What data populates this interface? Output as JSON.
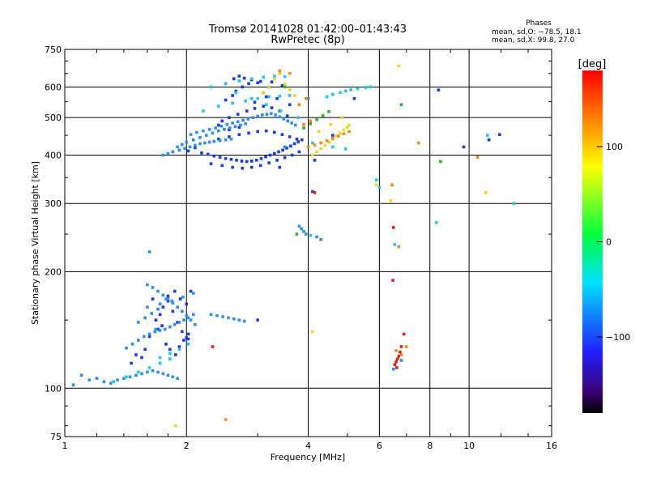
{
  "chart_data": {
    "type": "scatter",
    "title": "Tromsø 20141028 01:42:00–01:43:43",
    "subtitle": "RwPretec (8p)",
    "xlabel": "Frequency [MHz]",
    "ylabel": "Stationary phase Virtual Height [km]",
    "x_scale": "log",
    "y_scale": "log",
    "xlim": [
      1,
      16
    ],
    "ylim": [
      75,
      750
    ],
    "x_ticks": [
      1,
      2,
      4,
      6,
      8,
      10,
      16
    ],
    "y_ticks": [
      75,
      100,
      200,
      300,
      400,
      500,
      600,
      750
    ],
    "grid": true,
    "phases_info": {
      "heading": "Phases",
      "line1": "mean, sd,O: −78.5, 18.1",
      "line2": "mean, sd,X:  99.8, 27.0"
    },
    "colorbar": {
      "label": "[deg]",
      "range": [
        -180,
        180
      ],
      "ticks": [
        100,
        0,
        -100
      ],
      "colormap": "rainbow"
    },
    "colors": {
      "blue": "#1a3ddb",
      "sky": "#2e8fe8",
      "cyan": "#22c7e8",
      "yellow": "#e8d628",
      "orange": "#f28a1e",
      "red": "#e02020",
      "green": "#30b040"
    },
    "series": [
      {
        "color": "blue",
        "x": [
          2.02,
          2.1,
          2.18,
          2.26,
          2.34,
          2.42,
          2.5,
          2.58,
          2.66,
          2.74,
          2.82,
          2.9,
          2.98,
          3.06,
          3.14,
          3.22,
          3.3,
          3.38,
          3.46,
          3.54,
          3.62,
          3.7,
          3.78,
          3.86,
          2.3,
          2.45,
          2.6,
          2.75,
          2.9,
          3.05,
          3.2,
          3.35,
          3.5,
          3.65,
          3.8,
          2.4,
          2.55,
          2.7,
          2.85,
          3.0,
          3.15,
          3.3,
          3.45,
          3.6,
          3.75,
          2.45,
          2.55,
          2.68,
          2.82,
          2.95,
          3.1,
          3.25,
          3.4,
          3.55,
          2.5,
          2.6,
          2.65,
          2.75,
          2.85,
          3.05,
          3.25,
          3.45,
          2.62,
          2.7,
          2.78,
          2.9,
          3.0,
          3.2,
          3.1,
          3.35,
          3.6,
          2.95,
          3.15,
          2.55,
          2.7,
          2.4,
          1.68,
          1.72,
          1.75,
          1.8,
          1.85,
          1.9,
          1.95,
          2.0,
          1.78,
          1.82,
          1.88,
          1.92,
          1.97,
          2.02,
          1.7,
          1.62,
          1.58,
          1.55,
          1.5,
          1.46,
          1.8,
          1.87,
          1.93,
          2.0,
          2.05,
          1.65,
          1.74,
          2.02,
          4.1,
          4.6,
          5.2,
          8.4,
          9.7,
          11.2,
          11.9,
          4.15,
          3.4,
          3.0
        ],
        "y": [
          410,
          418,
          405,
          402,
          398,
          395,
          392,
          390,
          388,
          386,
          385,
          386,
          388,
          392,
          396,
          400,
          404,
          408,
          412,
          417,
          422,
          428,
          433,
          438,
          380,
          376,
          372,
          370,
          372,
          376,
          382,
          388,
          394,
          400,
          408,
          440,
          446,
          452,
          456,
          460,
          462,
          458,
          452,
          446,
          440,
          490,
          500,
          510,
          520,
          528,
          535,
          530,
          520,
          505,
          555,
          570,
          585,
          600,
          612,
          620,
          618,
          605,
          630,
          640,
          632,
          626,
          615,
          600,
          580,
          560,
          540,
          548,
          566,
          465,
          472,
          478,
          150,
          155,
          162,
          168,
          158,
          148,
          140,
          135,
          130,
          126,
          122,
          128,
          133,
          138,
          142,
          136,
          126,
          120,
          122,
          116,
          173,
          178,
          170,
          165,
          178,
          170,
          145,
          134,
          322,
          450,
          560,
          589,
          420,
          438,
          452,
          388,
          372,
          150
        ],
        "size": 1
      },
      {
        "color": "sky",
        "x": [
          2.05,
          2.12,
          2.2,
          2.28,
          2.36,
          2.44,
          2.52,
          2.6,
          2.68,
          2.76,
          2.84,
          2.92,
          3.0,
          3.08,
          3.16,
          3.24,
          3.32,
          3.4,
          3.48,
          3.56,
          3.64,
          3.72,
          1.9,
          1.95,
          2.0,
          2.08,
          2.16,
          2.24,
          2.32,
          2.4,
          2.48,
          2.56,
          2.64,
          2.72,
          2.8,
          1.75,
          1.8,
          1.85,
          1.92,
          1.98,
          2.04,
          2.1,
          2.16,
          2.22,
          2.28,
          2.34,
          2.42,
          2.5,
          2.58,
          1.6,
          1.65,
          1.7,
          1.75,
          1.8,
          1.85,
          1.9,
          1.95,
          2.0,
          2.05,
          2.1,
          1.42,
          1.47,
          1.52,
          1.57,
          1.62,
          1.67,
          1.72,
          1.77,
          1.82,
          1.87,
          1.92,
          1.97,
          2.02,
          2.08,
          1.15,
          1.2,
          1.25,
          1.3,
          1.35,
          1.4,
          1.45,
          1.5,
          1.55,
          1.6,
          1.65,
          1.7,
          1.75,
          1.8,
          1.85,
          1.9,
          2.3,
          2.38,
          2.46,
          2.54,
          2.62,
          2.7,
          2.78,
          1.6,
          1.72,
          1.84,
          1.96,
          2.08,
          1.52,
          1.58,
          1.64,
          1.7,
          3.8,
          3.85,
          3.9,
          3.95,
          4.2,
          4.3,
          6.5,
          6.8,
          1.05,
          1.1,
          1.62,
          1.78,
          1.68,
          3.5,
          4.0
        ],
        "y": [
          452,
          458,
          462,
          466,
          470,
          475,
          480,
          484,
          488,
          492,
          496,
          500,
          504,
          508,
          510,
          512,
          508,
          502,
          496,
          490,
          484,
          478,
          420,
          426,
          432,
          438,
          444,
          450,
          456,
          462,
          466,
          470,
          474,
          478,
          482,
          400,
          404,
          408,
          412,
          416,
          420,
          424,
          428,
          430,
          432,
          434,
          436,
          438,
          440,
          185,
          182,
          178,
          174,
          170,
          166,
          162,
          158,
          154,
          150,
          146,
          127,
          130,
          133,
          136,
          138,
          140,
          141,
          142,
          144,
          146,
          148,
          150,
          152,
          155,
          105,
          106,
          104,
          103,
          105,
          106,
          107,
          108,
          109,
          110,
          111,
          110,
          109,
          108,
          107,
          106,
          155,
          154,
          153,
          152,
          151,
          150,
          149,
          162,
          165,
          168,
          172,
          176,
          148,
          152,
          156,
          160,
          262,
          258,
          254,
          250,
          246,
          242,
          112,
          118,
          102,
          108,
          225,
          170,
          142,
          420,
          560
        ],
        "size": 1
      },
      {
        "color": "cyan",
        "x": [
          2.2,
          2.4,
          2.6,
          2.8,
          3.0,
          3.2,
          3.4,
          3.6,
          2.3,
          2.5,
          2.7,
          2.9,
          3.1,
          3.3,
          3.5,
          1.72,
          1.82,
          1.92,
          2.02,
          1.52,
          1.62,
          1.72,
          1.82,
          1.32,
          1.42,
          4.45,
          4.6,
          4.8,
          4.95,
          5.1,
          5.3,
          5.55,
          5.7,
          4.6,
          4.95,
          2.65,
          2.9,
          3.15,
          3.42,
          3.78,
          4.1,
          5.9,
          6.0,
          6.55,
          4.05,
          8.3,
          11.1,
          12.9
        ],
        "y": [
          520,
          535,
          545,
          552,
          560,
          566,
          568,
          570,
          600,
          612,
          622,
          630,
          636,
          640,
          638,
          120,
          123,
          126,
          130,
          110,
          113,
          116,
          119,
          104,
          107,
          566,
          574,
          580,
          586,
          590,
          594,
          598,
          600,
          420,
          415,
          580,
          560,
          540,
          520,
          500,
          430,
          345,
          330,
          235,
          248,
          268,
          450,
          300
        ],
        "size": 1
      },
      {
        "color": "yellow",
        "x": [
          4.1,
          4.2,
          4.3,
          4.4,
          4.5,
          4.6,
          4.7,
          4.8,
          4.9,
          5.0,
          5.05,
          4.25,
          4.55,
          4.85,
          3.5,
          3.6,
          3.7,
          3.3,
          3.4,
          3.2,
          3.1,
          6.7,
          11.0,
          5.9,
          6.4,
          4.1,
          1.88
        ],
        "y": [
          400,
          408,
          416,
          424,
          432,
          440,
          448,
          456,
          464,
          472,
          478,
          460,
          480,
          500,
          610,
          590,
          570,
          630,
          650,
          600,
          580,
          680,
          320,
          335,
          305,
          140,
          80
        ],
        "size": 1
      },
      {
        "color": "orange",
        "x": [
          4.0,
          4.15,
          4.3,
          4.45,
          4.6,
          4.75,
          4.9,
          5.05,
          3.9,
          4.05,
          3.8,
          3.95,
          3.6,
          6.8,
          6.6,
          7.0,
          2.5,
          6.7,
          7.5,
          10.5,
          6.45,
          3.4
        ],
        "y": [
          420,
          425,
          430,
          436,
          442,
          448,
          454,
          460,
          480,
          490,
          540,
          560,
          650,
          122,
          125,
          128,
          83,
          232,
          430,
          395,
          335,
          660
        ],
        "size": 1
      },
      {
        "color": "red",
        "x": [
          6.55,
          6.6,
          6.65,
          6.7,
          6.75,
          6.8,
          6.62,
          6.9,
          6.48,
          2.32,
          6.5,
          4.15
        ],
        "y": [
          115,
          117,
          119,
          121,
          124,
          128,
          113,
          138,
          190,
          128,
          260,
          320
        ],
        "size": 1
      },
      {
        "color": "green",
        "x": [
          3.9,
          4.05,
          4.2,
          4.35,
          4.5,
          3.5,
          3.75,
          8.5,
          6.8
        ],
        "y": [
          470,
          482,
          494,
          506,
          518,
          600,
          250,
          385,
          540
        ],
        "size": 1
      }
    ]
  }
}
